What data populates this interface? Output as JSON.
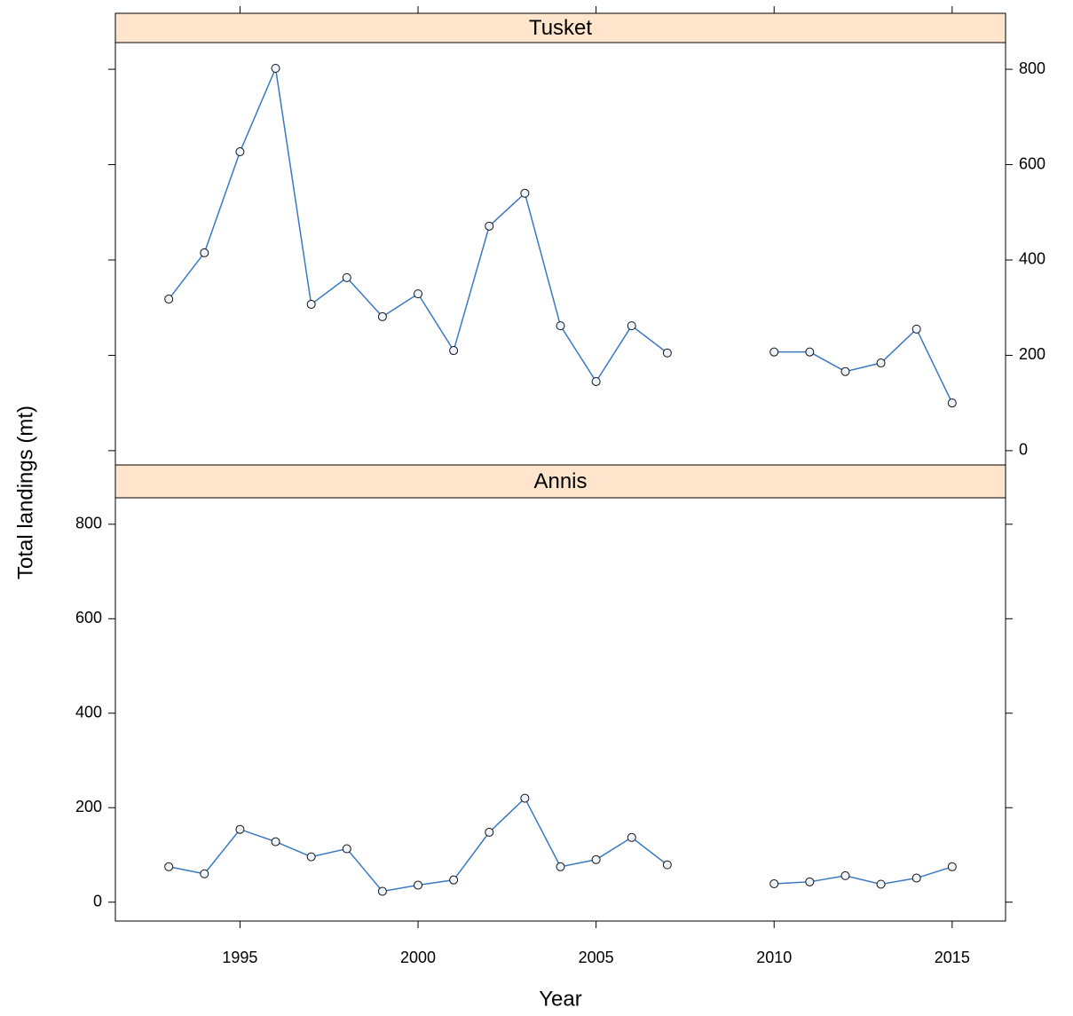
{
  "chart_data": [
    {
      "type": "line",
      "title": "Tusket",
      "color": "#3a78c2",
      "ytick_side": "right",
      "xtick_side": "top",
      "x": [
        1993,
        1994,
        1995,
        1996,
        1997,
        1998,
        1999,
        2000,
        2001,
        2002,
        2003,
        2004,
        2005,
        2006,
        2007,
        2008,
        2009,
        2010,
        2011,
        2012,
        2013,
        2014,
        2015
      ],
      "values": [
        318,
        415,
        627,
        802,
        307,
        363,
        281,
        329,
        210,
        471,
        540,
        262,
        145,
        262,
        205,
        null,
        null,
        207,
        207,
        166,
        184,
        255,
        100
      ],
      "xlim": [
        1991.5,
        2016.5
      ],
      "ylim": [
        -30,
        856
      ],
      "xticks": [
        1995,
        2000,
        2005,
        2010,
        2015
      ],
      "yticks": [
        0,
        200,
        400,
        600,
        800
      ]
    },
    {
      "type": "line",
      "title": "Annis",
      "color": "#3a78c2",
      "ytick_side": "left",
      "xtick_side": "bottom",
      "xlabel": "Year",
      "ylabel": "Total landings (mt)",
      "x": [
        1993,
        1994,
        1995,
        1996,
        1997,
        1998,
        1999,
        2000,
        2001,
        2002,
        2003,
        2004,
        2005,
        2006,
        2007,
        2008,
        2009,
        2010,
        2011,
        2012,
        2013,
        2014,
        2015
      ],
      "values": [
        75,
        60,
        154,
        128,
        96,
        113,
        23,
        36,
        47,
        148,
        220,
        75,
        90,
        137,
        79,
        null,
        null,
        39,
        43,
        56,
        38,
        51,
        75
      ],
      "xlim": [
        1991.5,
        2016.5
      ],
      "ylim": [
        -40,
        856
      ],
      "xticks": [
        1995,
        2000,
        2005,
        2010,
        2015
      ],
      "yticks": [
        0,
        200,
        400,
        600,
        800
      ]
    }
  ]
}
